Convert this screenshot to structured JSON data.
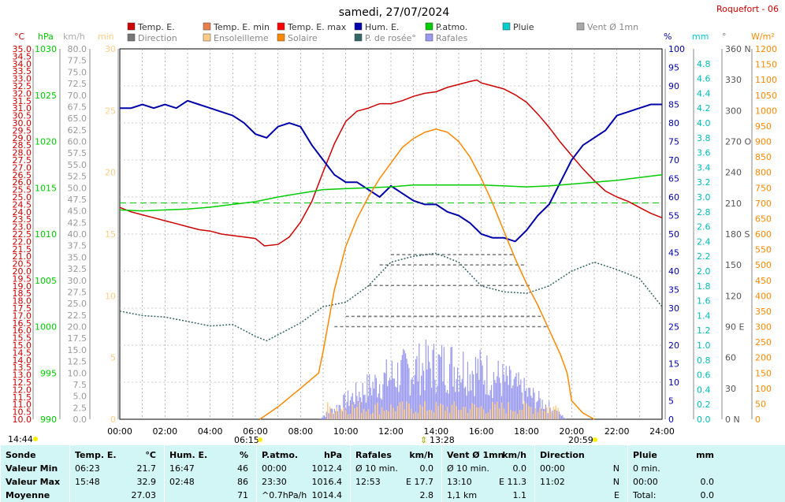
{
  "header": {
    "date": "samedi, 27/07/2024",
    "station": "Roquefort - 06"
  },
  "legend": [
    {
      "label": "Temp. E.",
      "color": "#cc0000"
    },
    {
      "label": "Temp. E. min",
      "color": "#e87f4f"
    },
    {
      "label": "Temp. E. max",
      "color": "#ff0000"
    },
    {
      "label": "Hum. E.",
      "color": "#0000aa"
    },
    {
      "label": "P.atmo.",
      "color": "#00cc00"
    },
    {
      "label": "Pluie",
      "color": "#00cccc"
    },
    {
      "label": "Vent Ø 1mn",
      "color": "#aaaaaa"
    },
    {
      "label": "Direction",
      "color": "#777777"
    },
    {
      "label": "Ensoleilleme",
      "color": "#ffcc88"
    },
    {
      "label": "Solaire",
      "color": "#ff8800"
    },
    {
      "label": "P. de rosée°",
      "color": "#336666"
    },
    {
      "label": "Rafales",
      "color": "#9999ee"
    }
  ],
  "axis_units": {
    "temp": "°C",
    "press": "hPa",
    "wind": "km/h",
    "sun": "min",
    "hum": "%",
    "rain": "mm",
    "dir": "°",
    "solar": "W/m²"
  },
  "sun_times": {
    "left": "14:44",
    "sunrise": "06:15",
    "noon": "13:28",
    "sunset": "20:59"
  },
  "colors": {
    "temp": "#cc0000",
    "press": "#00cc00",
    "wind": "#aaaaaa",
    "sun": "#ffcc88",
    "hum": "#0000aa",
    "rain": "#00cccc",
    "dir": "#777777",
    "solar": "#ff8800",
    "dew": "#336666",
    "gust": "#9999ee",
    "summary_bg": "#d2f5f5"
  },
  "chart_data": {
    "type": "line",
    "x_ticks": [
      "00:00",
      "02:00",
      "04:00",
      "06:00",
      "08:00",
      "10:00",
      "12:00",
      "14:00",
      "16:00",
      "18:00",
      "20:00",
      "22:00",
      "24:00"
    ],
    "axes": {
      "temp": {
        "label": "°C",
        "min": 10,
        "max": 35,
        "step": 0.5,
        "labels": [
          "10.0",
          "10.5",
          "11.0",
          "11.5",
          "12.0",
          "12.5",
          "13.0",
          "13.5",
          "14.0",
          "14.5",
          "15.0",
          "15.5",
          "16.0",
          "16.5",
          "17.0",
          "17.5",
          "18.0",
          "18.5",
          "19.0",
          "19.5",
          "20.0",
          "20.5",
          "21.0",
          "21.5",
          "22.0",
          "22.5",
          "23.0",
          "23.5",
          "24.0",
          "24.5",
          "25.0",
          "25.5",
          "26.0",
          "26.5",
          "27.0",
          "27.5",
          "28.0",
          "28.5",
          "29.0",
          "29.5",
          "30.0",
          "30.5",
          "31.0",
          "31.5",
          "32.0",
          "32.5",
          "33.0",
          "33.5",
          "34.0",
          "34.5",
          "35.0"
        ]
      },
      "press": {
        "label": "hPa",
        "min": 990,
        "max": 1030,
        "labels": [
          "990",
          "995",
          "1000",
          "1005",
          "1010",
          "1015",
          "1020",
          "1025",
          "1030"
        ]
      },
      "wind": {
        "label": "km/h",
        "min": 0,
        "max": 80,
        "labels": [
          "0.0",
          "2.5",
          "5.0",
          "7.5",
          "10.0",
          "12.5",
          "15.0",
          "17.5",
          "20.0",
          "22.5",
          "25.0",
          "27.5",
          "30.0",
          "32.5",
          "35.0",
          "37.5",
          "40.0",
          "42.5",
          "45.0",
          "47.5",
          "50.0",
          "52.5",
          "55.0",
          "57.5",
          "60.0",
          "62.5",
          "65.0",
          "67.5",
          "70.0",
          "72.5",
          "75.0",
          "77.5",
          "80.0"
        ]
      },
      "sun": {
        "label": "min",
        "min": 0,
        "max": 30,
        "labels": [
          "0",
          "5",
          "10",
          "15",
          "20",
          "25",
          "30"
        ]
      },
      "hum": {
        "label": "%",
        "min": 0,
        "max": 100,
        "labels": [
          "0",
          "5",
          "10",
          "15",
          "20",
          "25",
          "30",
          "35",
          "40",
          "45",
          "50",
          "55",
          "60",
          "65",
          "70",
          "75",
          "80",
          "85",
          "90",
          "95",
          "100"
        ]
      },
      "rain": {
        "label": "mm",
        "min": 0,
        "max": 5,
        "labels": [
          "0.0",
          "0.2",
          "0.4",
          "0.6",
          "0.8",
          "1.0",
          "1.2",
          "1.4",
          "1.6",
          "1.8",
          "2.0",
          "2.2",
          "2.4",
          "2.6",
          "2.8",
          "3.0",
          "3.2",
          "3.4",
          "3.6",
          "3.8",
          "4.0",
          "4.2",
          "4.4",
          "4.6",
          "4.8"
        ]
      },
      "dir": {
        "label": "°",
        "min": 0,
        "max": 360,
        "labels": [
          "0 N",
          "30",
          "60",
          "90 E",
          "120",
          "150",
          "180 S",
          "210",
          "240",
          "270 O",
          "300",
          "330",
          "360 N"
        ]
      },
      "solar": {
        "label": "W/m²",
        "min": 0,
        "max": 1200,
        "labels": [
          "0",
          "50",
          "100",
          "150",
          "200",
          "250",
          "300",
          "350",
          "400",
          "450",
          "500",
          "550",
          "600",
          "650",
          "700",
          "750",
          "800",
          "850",
          "900",
          "950",
          "1000",
          "1050",
          "1100",
          "1150",
          "1200"
        ]
      }
    },
    "series": [
      {
        "name": "Temp. E.",
        "axis": "temp",
        "color": "#cc0000",
        "x": [
          0,
          0.5,
          1,
          1.5,
          2,
          2.5,
          3,
          3.5,
          4,
          4.5,
          5,
          5.5,
          6,
          6.4,
          7,
          7.5,
          8,
          8.5,
          9,
          9.5,
          10,
          10.5,
          11,
          11.5,
          12,
          12.5,
          13,
          13.5,
          14,
          14.5,
          15,
          15.5,
          15.8,
          16,
          16.5,
          17,
          17.5,
          18,
          18.5,
          19,
          19.5,
          20,
          20.5,
          21,
          21.5,
          22,
          22.5,
          23,
          23.5,
          24
        ],
        "y": [
          24.3,
          24.0,
          23.8,
          23.6,
          23.4,
          23.2,
          23.0,
          22.8,
          22.7,
          22.5,
          22.4,
          22.3,
          22.2,
          21.7,
          21.8,
          22.3,
          23.3,
          24.7,
          26.7,
          28.6,
          30.1,
          30.8,
          31.0,
          31.3,
          31.3,
          31.5,
          31.8,
          32.0,
          32.1,
          32.4,
          32.6,
          32.8,
          32.9,
          32.7,
          32.5,
          32.3,
          31.9,
          31.4,
          30.6,
          29.7,
          28.7,
          27.8,
          26.9,
          26.1,
          25.4,
          25.0,
          24.7,
          24.3,
          23.9,
          23.6
        ]
      },
      {
        "name": "Hum. E.",
        "axis": "hum",
        "color": "#0000aa",
        "x": [
          0,
          0.5,
          1,
          1.5,
          2,
          2.5,
          3,
          3.5,
          4,
          4.5,
          5,
          5.5,
          6,
          6.5,
          7,
          7.5,
          8,
          8.5,
          9,
          9.5,
          10,
          10.5,
          11,
          11.5,
          12,
          12.5,
          13,
          13.5,
          14,
          14.5,
          15,
          15.5,
          16,
          16.5,
          17,
          17.5,
          18,
          18.5,
          19,
          19.5,
          20,
          20.5,
          21,
          21.5,
          22,
          22.5,
          23,
          23.5,
          24
        ],
        "y": [
          84,
          84,
          85,
          84,
          85,
          84,
          86,
          85,
          84,
          83,
          82,
          80,
          77,
          76,
          79,
          80,
          79,
          74,
          70,
          66,
          64,
          64,
          62,
          60,
          63,
          61,
          59,
          58,
          58,
          56,
          55,
          53,
          50,
          49,
          49,
          48,
          51,
          55,
          58,
          64,
          70,
          74,
          76,
          78,
          82,
          83,
          84,
          85,
          85
        ]
      },
      {
        "name": "P.atmo.",
        "axis": "press",
        "color": "#00cc00",
        "x": [
          0,
          1,
          2,
          3,
          4,
          5,
          6,
          7,
          8,
          9,
          10,
          11,
          12,
          13,
          14,
          15,
          16,
          17,
          18,
          19,
          20,
          21,
          22,
          23,
          24
        ],
        "y": [
          1012.6,
          1012.5,
          1012.6,
          1012.7,
          1012.9,
          1013.2,
          1013.5,
          1014.0,
          1014.4,
          1014.8,
          1014.9,
          1015.0,
          1015.1,
          1015.3,
          1015.3,
          1015.3,
          1015.3,
          1015.2,
          1015.1,
          1015.2,
          1015.4,
          1015.6,
          1015.8,
          1016.1,
          1016.4
        ]
      },
      {
        "name": "P. de rosée°",
        "axis": "temp",
        "color": "#336666",
        "dashed": true,
        "x": [
          0,
          1,
          2,
          3,
          4,
          5,
          6,
          6.5,
          7,
          8,
          9,
          10,
          11,
          12,
          13,
          14,
          15,
          16,
          17,
          18,
          19,
          20,
          21,
          22,
          23,
          24
        ],
        "y": [
          17.3,
          17.0,
          16.9,
          16.6,
          16.3,
          16.4,
          15.6,
          15.3,
          15.7,
          16.5,
          17.6,
          17.9,
          19.0,
          20.6,
          21.0,
          21.2,
          20.6,
          19.0,
          18.6,
          18.5,
          19.0,
          20.0,
          20.6,
          20.1,
          19.5,
          17.6
        ]
      },
      {
        "name": "Solaire",
        "axis": "solar",
        "color": "#ff8800",
        "x": [
          6.2,
          7,
          8,
          8.8,
          9,
          9.5,
          10,
          10.5,
          11,
          11.5,
          12,
          12.5,
          13,
          13.5,
          14,
          14.5,
          15,
          15.5,
          16,
          16.5,
          17,
          17.5,
          18,
          18.5,
          19,
          19.5,
          19.8,
          20,
          20.5,
          21
        ],
        "y": [
          0,
          40,
          100,
          150,
          220,
          420,
          560,
          650,
          720,
          780,
          830,
          880,
          910,
          930,
          940,
          930,
          900,
          850,
          780,
          700,
          610,
          520,
          440,
          370,
          290,
          210,
          150,
          60,
          20,
          0
        ]
      }
    ],
    "reference_line": {
      "axis": "temp",
      "value": 24.6,
      "color": "#00cc00",
      "dashed": true
    },
    "gust_bars": {
      "axis": "wind",
      "start": 8.8,
      "end": 19.8,
      "peak": 17.7,
      "color": "#9999ee"
    },
    "sunshine_bars": {
      "axis": "wind",
      "start": 9.2,
      "end": 19.5,
      "color": "#ffcc88"
    },
    "direction_points": {
      "axis": "dir",
      "color": "#777777",
      "values": [
        90,
        100,
        100,
        130,
        150,
        160
      ]
    }
  },
  "summary": {
    "columns": [
      {
        "header": "Sonde",
        "unit": ""
      },
      {
        "header": "Temp. E.",
        "unit": "°C"
      },
      {
        "header": "Hum. E.",
        "unit": "%"
      },
      {
        "header": "P.atmo.",
        "unit": "hPa"
      },
      {
        "header": "Rafales",
        "unit": "km/h"
      },
      {
        "header": "Vent Ø 1mn",
        "unit": "km/h"
      },
      {
        "header": "Direction",
        "unit": ""
      },
      {
        "header": "Pluie",
        "unit": "mm"
      }
    ],
    "rows": [
      {
        "label": "Valeur Min",
        "cells": [
          [
            "06:23",
            "21.7"
          ],
          [
            "16:47",
            "46"
          ],
          [
            "00:00",
            "1012.4"
          ],
          [
            "Ø 10 min.",
            "0.0"
          ],
          [
            "Ø 10 min.",
            "0.0"
          ],
          [
            "00:00",
            "N"
          ],
          [
            "0 min.",
            ""
          ]
        ]
      },
      {
        "label": "Valeur Max",
        "cells": [
          [
            "15:48",
            "32.9"
          ],
          [
            "02:48",
            "86"
          ],
          [
            "23:30",
            "1016.4"
          ],
          [
            "12:53",
            "E 17.7"
          ],
          [
            "13:10",
            "E 11.3"
          ],
          [
            "11:02",
            "N"
          ],
          [
            "00:00",
            "0.0"
          ]
        ]
      },
      {
        "label": "Moyenne",
        "cells": [
          [
            "",
            "27.03"
          ],
          [
            "",
            "71"
          ],
          [
            "^0.7hPa/h",
            "1014.4"
          ],
          [
            "",
            "2.8"
          ],
          [
            "1,1 km",
            "1.1"
          ],
          [
            "",
            "E"
          ],
          [
            "Total:",
            "0.0"
          ]
        ]
      }
    ]
  }
}
